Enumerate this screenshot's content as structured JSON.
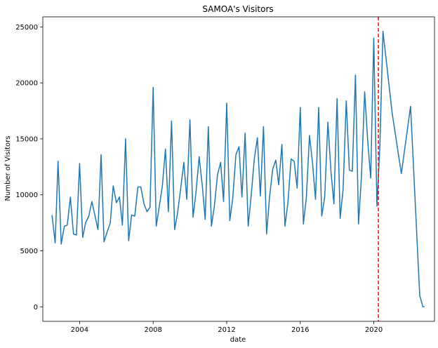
{
  "chart_data": {
    "type": "line",
    "title": "SAMOA's Visitors",
    "xlabel": "date",
    "ylabel": "Number of Visitors",
    "xlim": [
      2002.0,
      2023.3
    ],
    "ylim": [
      -1300,
      25900
    ],
    "x_ticks": [
      2004,
      2008,
      2012,
      2016,
      2020
    ],
    "x_tick_labels": [
      "2004",
      "2008",
      "2012",
      "2016",
      "2020"
    ],
    "y_ticks": [
      0,
      5000,
      10000,
      15000,
      20000,
      25000
    ],
    "y_tick_labels": [
      "0",
      "5000",
      "10000",
      "15000",
      "20000",
      "25000"
    ],
    "grid": false,
    "line_color": "#1f77b4",
    "vline": {
      "x": 2020.25,
      "color": "#ff0000",
      "style": "dashed"
    },
    "series": [
      {
        "x": [
          2002.5,
          2002.67,
          2002.83,
          2003.0,
          2003.17,
          2003.33,
          2003.5,
          2003.67,
          2003.83,
          2004.0,
          2004.17,
          2004.33,
          2004.5,
          2004.67,
          2004.83,
          2005.0,
          2005.17,
          2005.33,
          2005.5,
          2005.67,
          2005.83,
          2006.0,
          2006.17,
          2006.33,
          2006.5,
          2006.67,
          2006.83,
          2007.0,
          2007.17,
          2007.33,
          2007.5,
          2007.67,
          2007.83,
          2008.0,
          2008.17,
          2008.33,
          2008.5,
          2008.67,
          2008.83,
          2009.0,
          2009.17,
          2009.33,
          2009.5,
          2009.67,
          2009.83,
          2010.0,
          2010.17,
          2010.33,
          2010.5,
          2010.67,
          2010.83,
          2011.0,
          2011.17,
          2011.33,
          2011.5,
          2011.67,
          2011.83,
          2012.0,
          2012.17,
          2012.33,
          2012.5,
          2012.67,
          2012.83,
          2013.0,
          2013.17,
          2013.33,
          2013.5,
          2013.67,
          2013.83,
          2014.0,
          2014.17,
          2014.33,
          2014.5,
          2014.67,
          2014.83,
          2015.0,
          2015.17,
          2015.33,
          2015.5,
          2015.67,
          2015.83,
          2016.0,
          2016.17,
          2016.33,
          2016.5,
          2016.67,
          2016.83,
          2017.0,
          2017.17,
          2017.33,
          2017.5,
          2017.67,
          2017.83,
          2018.0,
          2018.17,
          2018.33,
          2018.5,
          2018.67,
          2018.83,
          2019.0,
          2019.17,
          2019.33,
          2019.5,
          2019.67,
          2019.83,
          2020.0,
          2020.17,
          2020.33,
          2020.5,
          2021.0,
          2021.5,
          2022.0,
          2022.5,
          2022.67,
          2022.75
        ],
        "y": [
          8200,
          5700,
          13000,
          5600,
          7200,
          7300,
          9800,
          6500,
          6400,
          12800,
          6200,
          7500,
          8100,
          9400,
          8200,
          6900,
          13600,
          5800,
          6700,
          7500,
          10800,
          9300,
          9800,
          7300,
          15000,
          5900,
          8200,
          8100,
          10700,
          10700,
          9200,
          8500,
          8900,
          19600,
          7200,
          8900,
          10800,
          14100,
          8500,
          16600,
          6900,
          8400,
          10600,
          12900,
          9600,
          16700,
          8000,
          10200,
          13400,
          10900,
          7800,
          16100,
          7200,
          9000,
          11800,
          12900,
          9400,
          18200,
          7700,
          9700,
          13600,
          14300,
          9800,
          15500,
          7200,
          9900,
          13200,
          15100,
          9900,
          16100,
          6500,
          9800,
          12300,
          13100,
          10900,
          14500,
          7200,
          9300,
          13200,
          13000,
          10600,
          17800,
          7400,
          9700,
          15300,
          12800,
          9600,
          17800,
          8100,
          9800,
          16500,
          12100,
          9200,
          18600,
          7900,
          10500,
          18400,
          12200,
          12100,
          20700,
          7400,
          11700,
          19200,
          14800,
          11500,
          24000,
          9000,
          14400,
          24600,
          17300,
          11900,
          17900,
          1000,
          0,
          0
        ]
      }
    ]
  }
}
